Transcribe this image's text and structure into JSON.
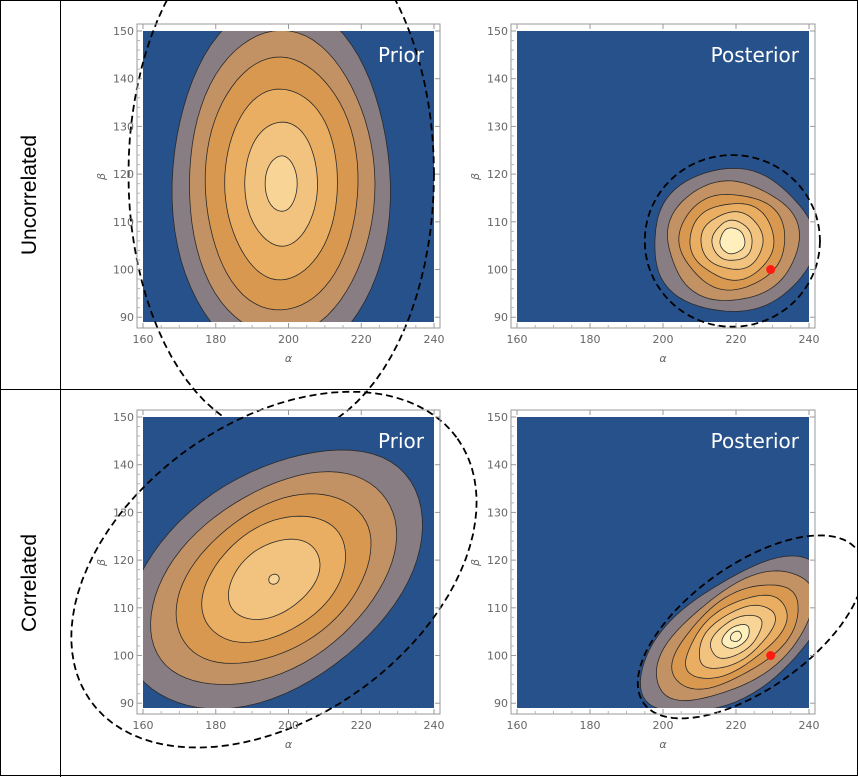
{
  "rows": [
    {
      "label": "Uncorrelated"
    },
    {
      "label": "Correlated"
    }
  ],
  "colors": {
    "background": "#27518A",
    "contour_fills": [
      "#27518A",
      "#887D83",
      "#C39264",
      "#D9984F",
      "#E9AE62",
      "#F2C27F",
      "#F8D596",
      "#FEEFBC"
    ],
    "contour_line": "#2a2a2a",
    "observed_point": "#FF1A12",
    "panel_title": "#FFFFFF"
  },
  "chart_data": [
    {
      "type": "contour",
      "row": "Uncorrelated",
      "title": "Prior",
      "xlabel": "α",
      "ylabel": "β",
      "xlim": [
        160,
        240
      ],
      "ylim": [
        89,
        150
      ],
      "xticks": [
        160,
        180,
        200,
        220,
        240
      ],
      "yticks": [
        90,
        100,
        110,
        120,
        130,
        140,
        150
      ],
      "center": [
        198,
        118
      ],
      "contour_semi_axes": [
        [
          30,
          38
        ],
        [
          25.5,
          32
        ],
        [
          21,
          26.5
        ],
        [
          15.5,
          20
        ],
        [
          10,
          13
        ],
        [
          4.4,
          5.8
        ]
      ],
      "dashed_ellipse": {
        "center": [
          198,
          120
        ],
        "semi_axes": [
          42,
          55
        ]
      },
      "observed_point": null
    },
    {
      "type": "contour",
      "row": "Uncorrelated",
      "title": "Posterior",
      "xlabel": "α",
      "ylabel": "β",
      "xlim": [
        160,
        240
      ],
      "ylim": [
        89,
        150
      ],
      "xticks": [
        160,
        180,
        200,
        220,
        240
      ],
      "yticks": [
        90,
        100,
        110,
        120,
        130,
        140,
        150
      ],
      "center": [
        219,
        106
      ],
      "contour_semi_axes": [
        [
          22,
          15
        ],
        [
          18,
          12.5
        ],
        [
          14.5,
          10
        ],
        [
          11.5,
          8
        ],
        [
          8.5,
          6
        ],
        [
          5.5,
          4.2
        ],
        [
          3.4,
          2.7
        ]
      ],
      "dashed_ellipse": {
        "center": [
          219,
          106
        ],
        "semi_axes": [
          24,
          18
        ]
      },
      "observed_point": [
        229.5,
        100
      ]
    },
    {
      "type": "contour",
      "row": "Correlated",
      "title": "Prior",
      "xlabel": "α",
      "ylabel": "β",
      "xlim": [
        160,
        240
      ],
      "ylim": [
        89,
        150
      ],
      "xticks": [
        160,
        180,
        200,
        220,
        240
      ],
      "yticks": [
        90,
        100,
        110,
        120,
        130,
        140,
        150
      ],
      "center": [
        196,
        116
      ],
      "contour_semi_axes": [
        [
          46,
          22
        ],
        [
          38,
          18
        ],
        [
          30,
          14.5
        ],
        [
          22,
          11
        ],
        [
          14,
          7
        ],
        [
          1.5,
          1
        ]
      ],
      "dashed_ellipse": {
        "center": [
          196,
          118
        ],
        "semi_axes": [
          62,
          31
        ]
      },
      "observed_point": null
    },
    {
      "type": "contour",
      "row": "Correlated",
      "title": "Posterior",
      "xlabel": "α",
      "ylabel": "β",
      "xlim": [
        160,
        240
      ],
      "ylim": [
        89,
        150
      ],
      "xticks": [
        160,
        180,
        200,
        220,
        240
      ],
      "yticks": [
        90,
        100,
        110,
        120,
        130,
        140,
        150
      ],
      "center": [
        220,
        104
      ],
      "contour_semi_axes": [
        [
          30,
          11.5
        ],
        [
          25,
          9.5
        ],
        [
          20,
          7.8
        ],
        [
          16,
          6.2
        ],
        [
          12,
          4.8
        ],
        [
          8,
          3.4
        ],
        [
          4.2,
          2
        ],
        [
          1.6,
          1
        ]
      ],
      "dashed_ellipse": {
        "center": [
          224,
          106
        ],
        "semi_axes": [
          36,
          13
        ]
      },
      "observed_point": [
        229.5,
        100
      ]
    }
  ]
}
